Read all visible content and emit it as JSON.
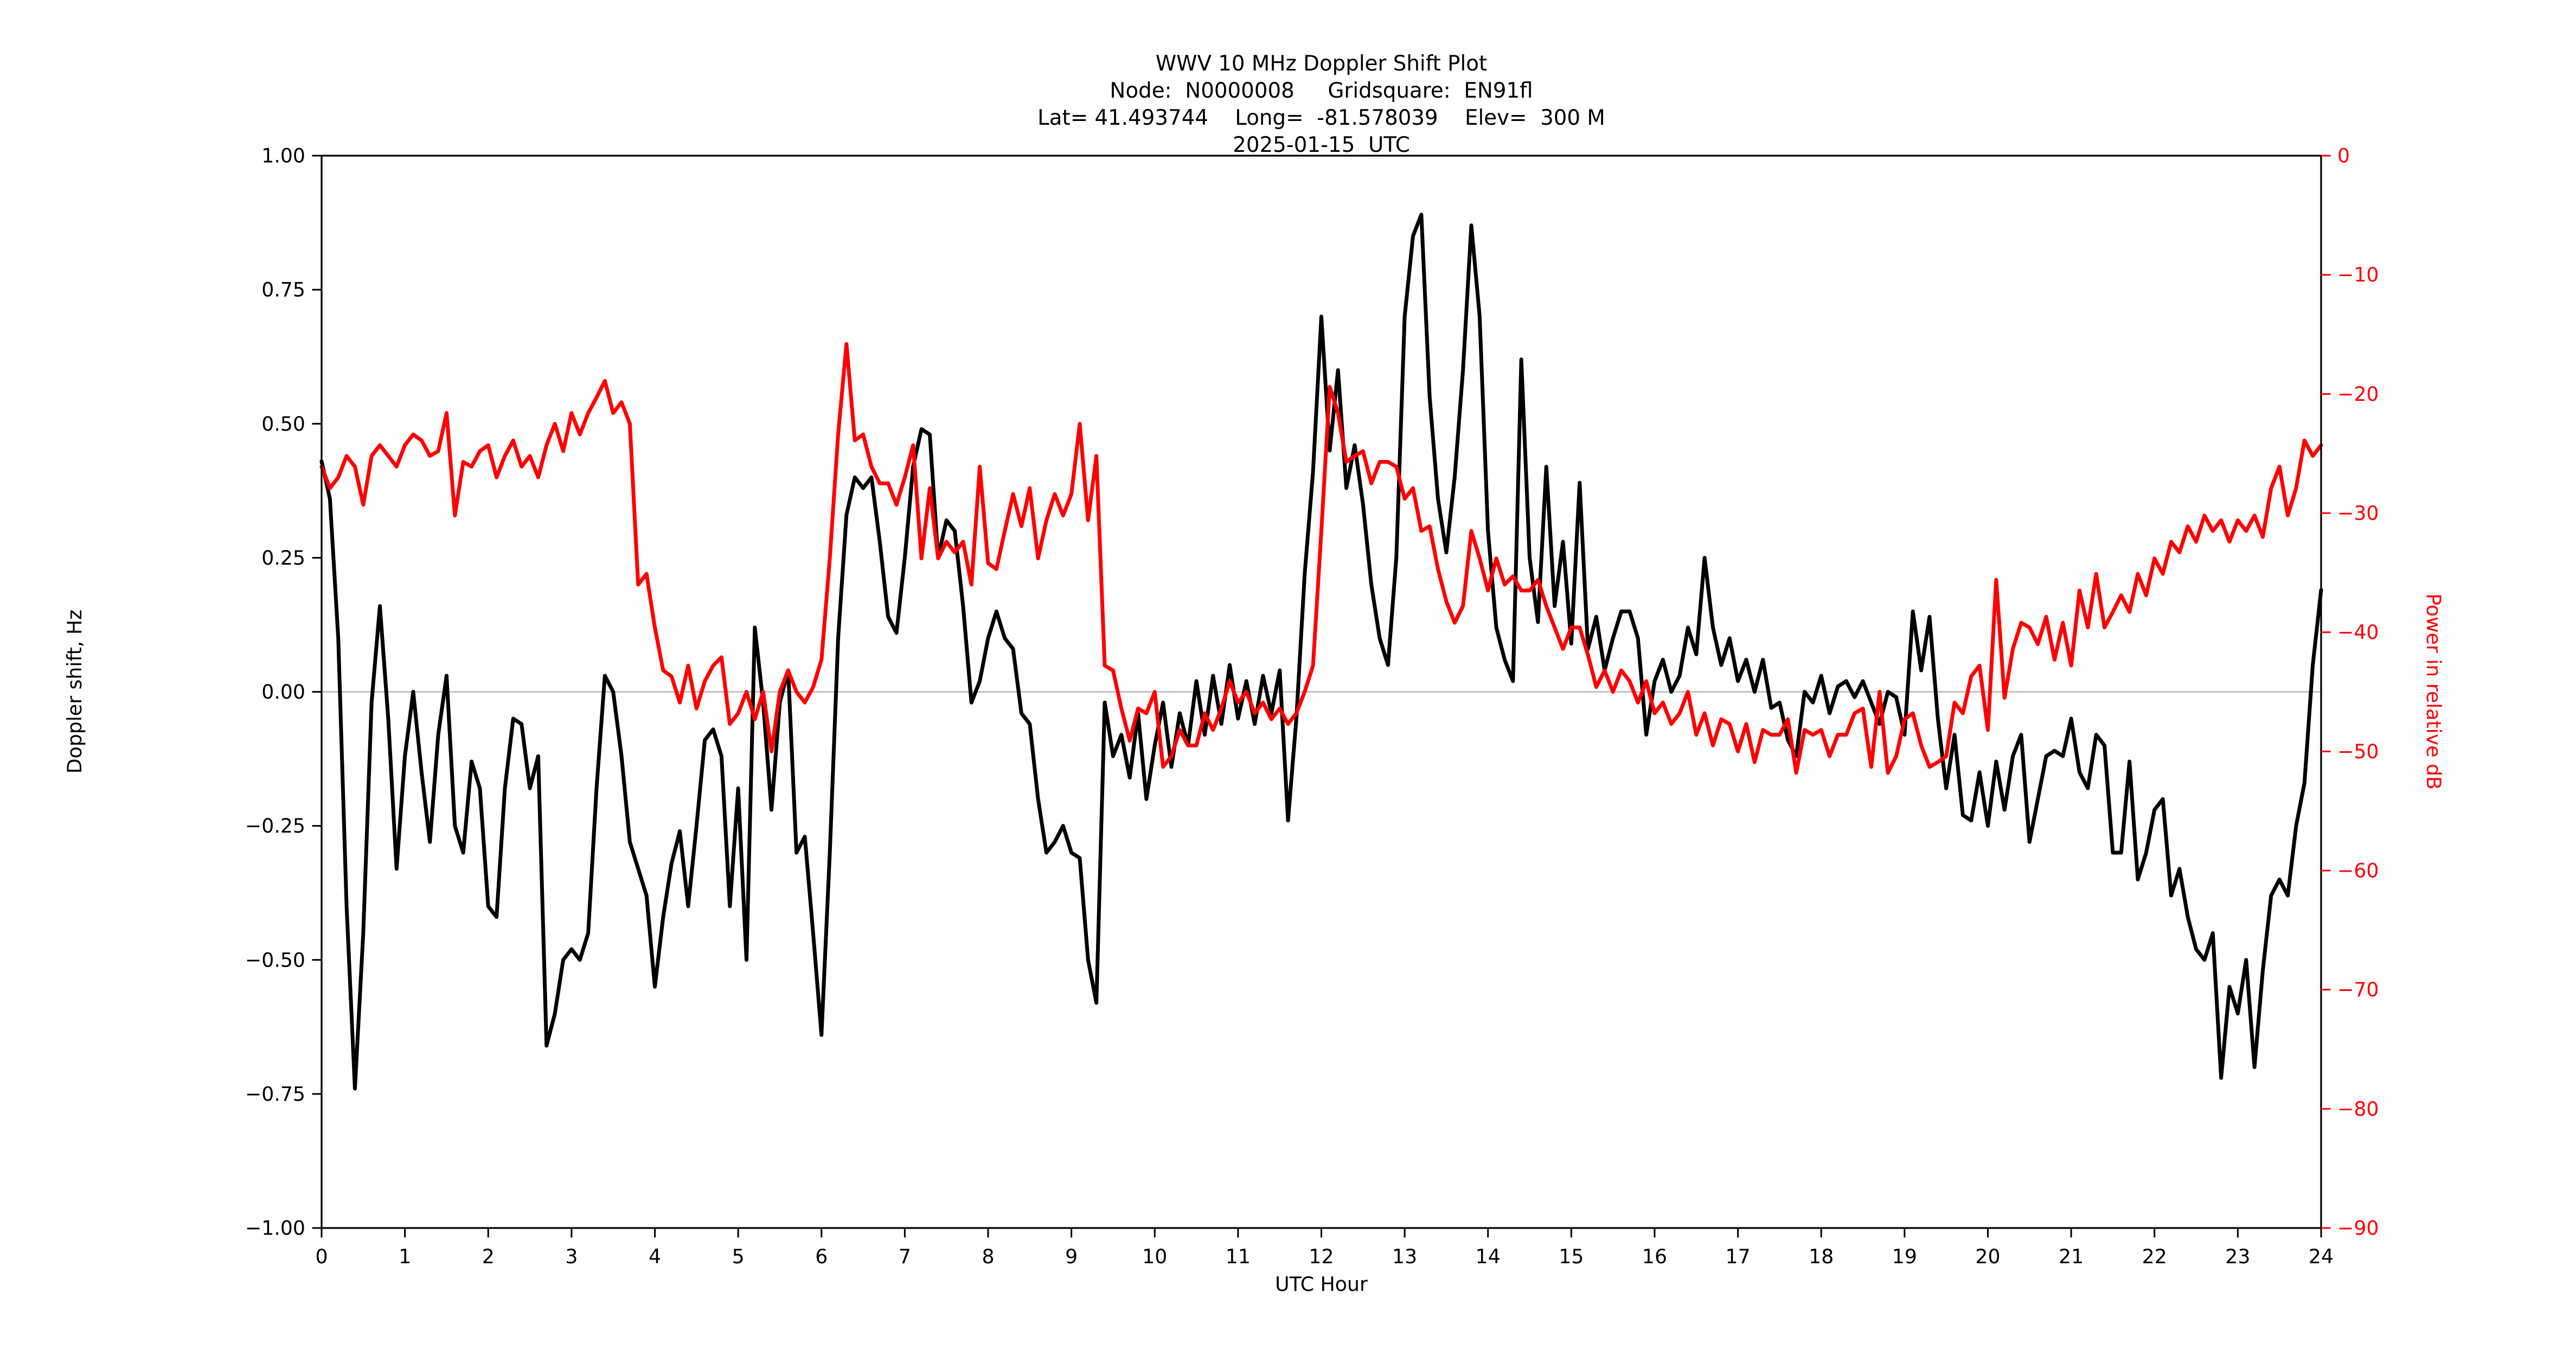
{
  "title": {
    "line1": "WWV 10 MHz Doppler Shift Plot",
    "line2": "Node:  N0000008     Gridsquare:  EN91fl",
    "line3": "Lat= 41.493744    Long=  -81.578039    Elev=  300 M",
    "line4": "2025-01-15  UTC"
  },
  "axes": {
    "x_label": "UTC Hour",
    "y_left_label": "Doppler shift, Hz",
    "y_right_label": "Power in relative dB",
    "x_ticks": [
      {
        "value": 0,
        "label": "0"
      },
      {
        "value": 1,
        "label": "1"
      },
      {
        "value": 2,
        "label": "2"
      },
      {
        "value": 3,
        "label": "3"
      },
      {
        "value": 4,
        "label": "4"
      },
      {
        "value": 5,
        "label": "5"
      },
      {
        "value": 6,
        "label": "6"
      },
      {
        "value": 7,
        "label": "7"
      },
      {
        "value": 8,
        "label": "8"
      },
      {
        "value": 9,
        "label": "9"
      },
      {
        "value": 10,
        "label": "10"
      },
      {
        "value": 11,
        "label": "11"
      },
      {
        "value": 12,
        "label": "12"
      },
      {
        "value": 13,
        "label": "13"
      },
      {
        "value": 14,
        "label": "14"
      },
      {
        "value": 15,
        "label": "15"
      },
      {
        "value": 16,
        "label": "16"
      },
      {
        "value": 17,
        "label": "17"
      },
      {
        "value": 18,
        "label": "18"
      },
      {
        "value": 19,
        "label": "19"
      },
      {
        "value": 20,
        "label": "20"
      },
      {
        "value": 21,
        "label": "21"
      },
      {
        "value": 22,
        "label": "22"
      },
      {
        "value": 23,
        "label": "23"
      },
      {
        "value": 24,
        "label": "24"
      }
    ],
    "y_left_ticks": [
      {
        "value": 1.0,
        "label": "1.00"
      },
      {
        "value": 0.75,
        "label": "0.75"
      },
      {
        "value": 0.5,
        "label": "0.50"
      },
      {
        "value": 0.25,
        "label": "0.25"
      },
      {
        "value": 0.0,
        "label": "0.00"
      },
      {
        "value": -0.25,
        "label": "−0.25"
      },
      {
        "value": -0.5,
        "label": "−0.50"
      },
      {
        "value": -0.75,
        "label": "−0.75"
      },
      {
        "value": -1.0,
        "label": "−1.00"
      }
    ],
    "y_right_ticks": [
      {
        "value": 0,
        "label": "0"
      },
      {
        "value": -10,
        "label": "−10"
      },
      {
        "value": -20,
        "label": "−20"
      },
      {
        "value": -30,
        "label": "−30"
      },
      {
        "value": -40,
        "label": "−40"
      },
      {
        "value": -50,
        "label": "−50"
      },
      {
        "value": -60,
        "label": "−60"
      },
      {
        "value": -70,
        "label": "−70"
      },
      {
        "value": -80,
        "label": "−80"
      },
      {
        "value": -90,
        "label": "−90"
      }
    ]
  },
  "colors": {
    "doppler_line": "#000000",
    "power_line": "#ff0000",
    "zero_gridline": "#b0b0b0",
    "spine": "#000000",
    "background": "#ffffff"
  },
  "chart_data": {
    "type": "line",
    "title": "WWV 10 MHz Doppler Shift Plot",
    "subtitle_lines": [
      "Node:  N0000008     Gridsquare:  EN91fl",
      "Lat= 41.493744    Long=  -81.578039    Elev=  300 M",
      "2025-01-15  UTC"
    ],
    "xlabel": "UTC Hour",
    "ylabel_left": "Doppler shift, Hz",
    "ylabel_right": "Power in relative dB",
    "xlim": [
      0,
      24
    ],
    "ylim_left": [
      -1.0,
      1.0
    ],
    "ylim_right": [
      -90,
      0
    ],
    "grid": "single horizontal gray line at left-axis 0.00",
    "legend": "none",
    "x_start": 0.0,
    "x_step": 0.1,
    "series": [
      {
        "name": "Doppler shift",
        "axis": "left",
        "unit": "Hz",
        "color": "#000000",
        "values": [
          0.43,
          0.36,
          0.1,
          -0.4,
          -0.74,
          -0.45,
          -0.02,
          0.16,
          -0.05,
          -0.33,
          -0.12,
          0.0,
          -0.15,
          -0.28,
          -0.08,
          0.03,
          -0.25,
          -0.3,
          -0.13,
          -0.18,
          -0.4,
          -0.42,
          -0.18,
          -0.05,
          -0.06,
          -0.18,
          -0.12,
          -0.66,
          -0.6,
          -0.5,
          -0.48,
          -0.5,
          -0.45,
          -0.18,
          0.03,
          0.0,
          -0.12,
          -0.28,
          -0.33,
          -0.38,
          -0.55,
          -0.42,
          -0.32,
          -0.26,
          -0.4,
          -0.25,
          -0.09,
          -0.07,
          -0.12,
          -0.4,
          -0.18,
          -0.5,
          0.12,
          -0.02,
          -0.22,
          -0.02,
          0.04,
          -0.3,
          -0.27,
          -0.45,
          -0.64,
          -0.3,
          0.1,
          0.33,
          0.4,
          0.38,
          0.4,
          0.28,
          0.14,
          0.11,
          0.25,
          0.42,
          0.49,
          0.48,
          0.25,
          0.32,
          0.3,
          0.16,
          -0.02,
          0.02,
          0.1,
          0.15,
          0.1,
          0.08,
          -0.04,
          -0.06,
          -0.2,
          -0.3,
          -0.28,
          -0.25,
          -0.3,
          -0.31,
          -0.5,
          -0.58,
          -0.02,
          -0.12,
          -0.08,
          -0.16,
          -0.04,
          -0.2,
          -0.1,
          -0.02,
          -0.14,
          -0.04,
          -0.1,
          0.02,
          -0.08,
          0.03,
          -0.06,
          0.05,
          -0.05,
          0.02,
          -0.06,
          0.03,
          -0.04,
          0.04,
          -0.24,
          -0.05,
          0.22,
          0.41,
          0.7,
          0.45,
          0.6,
          0.38,
          0.46,
          0.35,
          0.2,
          0.1,
          0.05,
          0.25,
          0.7,
          0.85,
          0.89,
          0.55,
          0.36,
          0.26,
          0.4,
          0.6,
          0.87,
          0.7,
          0.3,
          0.12,
          0.06,
          0.02,
          0.62,
          0.25,
          0.13,
          0.42,
          0.16,
          0.28,
          0.09,
          0.39,
          0.08,
          0.14,
          0.04,
          0.1,
          0.15,
          0.15,
          0.1,
          -0.08,
          0.02,
          0.06,
          0.0,
          0.03,
          0.12,
          0.07,
          0.25,
          0.12,
          0.05,
          0.1,
          0.02,
          0.06,
          0.0,
          0.06,
          -0.03,
          -0.02,
          -0.09,
          -0.12,
          0.0,
          -0.02,
          0.03,
          -0.04,
          0.01,
          0.02,
          -0.01,
          0.02,
          -0.02,
          -0.06,
          0.0,
          -0.01,
          -0.08,
          0.15,
          0.04,
          0.14,
          -0.05,
          -0.18,
          -0.08,
          -0.23,
          -0.24,
          -0.15,
          -0.25,
          -0.13,
          -0.22,
          -0.12,
          -0.08,
          -0.28,
          -0.2,
          -0.12,
          -0.11,
          -0.12,
          -0.05,
          -0.15,
          -0.18,
          -0.08,
          -0.1,
          -0.3,
          -0.3,
          -0.13,
          -0.35,
          -0.3,
          -0.22,
          -0.2,
          -0.38,
          -0.33,
          -0.42,
          -0.48,
          -0.5,
          -0.45,
          -0.72,
          -0.55,
          -0.6,
          -0.5,
          -0.7,
          -0.52,
          -0.38,
          -0.35,
          -0.38,
          -0.25,
          -0.17,
          0.05,
          0.19
        ]
      },
      {
        "name": "Power",
        "axis": "right",
        "unit": "dB",
        "color": "#ff0000",
        "values": [
          -26.1,
          -27.9,
          -27.0,
          -25.2,
          -26.1,
          -29.3,
          -25.2,
          -24.3,
          -25.2,
          -26.1,
          -24.3,
          -23.4,
          -23.9,
          -25.2,
          -24.8,
          -21.6,
          -30.2,
          -25.7,
          -26.1,
          -24.8,
          -24.3,
          -27.0,
          -25.2,
          -23.9,
          -26.1,
          -25.2,
          -27.0,
          -24.3,
          -22.5,
          -24.8,
          -21.6,
          -23.4,
          -21.6,
          -20.3,
          -18.9,
          -21.6,
          -20.7,
          -22.5,
          -36.0,
          -35.1,
          -39.6,
          -43.2,
          -43.7,
          -45.9,
          -42.8,
          -46.4,
          -44.1,
          -42.8,
          -42.1,
          -47.7,
          -46.8,
          -45.0,
          -47.3,
          -45.0,
          -50.0,
          -45.0,
          -43.2,
          -45.0,
          -45.9,
          -44.6,
          -42.3,
          -33.8,
          -23.4,
          -15.8,
          -23.9,
          -23.4,
          -26.1,
          -27.5,
          -27.5,
          -29.3,
          -27.0,
          -24.3,
          -33.8,
          -27.9,
          -33.8,
          -32.4,
          -33.3,
          -32.4,
          -36.0,
          -26.1,
          -34.2,
          -34.7,
          -31.5,
          -28.4,
          -31.1,
          -27.9,
          -33.8,
          -30.6,
          -28.4,
          -30.2,
          -28.4,
          -22.5,
          -30.6,
          -25.2,
          -42.8,
          -43.2,
          -46.4,
          -49.1,
          -46.4,
          -46.8,
          -45.0,
          -51.3,
          -50.4,
          -48.2,
          -49.5,
          -49.5,
          -46.8,
          -48.2,
          -46.4,
          -44.1,
          -45.9,
          -45.0,
          -46.8,
          -45.9,
          -47.3,
          -46.4,
          -47.7,
          -46.8,
          -45.0,
          -42.8,
          -31.5,
          -19.4,
          -21.6,
          -25.7,
          -25.2,
          -24.8,
          -27.5,
          -25.7,
          -25.7,
          -26.1,
          -28.8,
          -27.9,
          -31.5,
          -31.1,
          -34.7,
          -37.4,
          -39.2,
          -37.8,
          -31.5,
          -33.8,
          -36.5,
          -33.8,
          -36.0,
          -35.3,
          -36.5,
          -36.5,
          -35.6,
          -37.8,
          -39.6,
          -41.4,
          -39.6,
          -39.6,
          -41.9,
          -44.6,
          -43.2,
          -45.0,
          -43.2,
          -44.1,
          -45.9,
          -44.1,
          -46.8,
          -45.9,
          -47.7,
          -46.8,
          -45.0,
          -48.6,
          -46.8,
          -49.5,
          -47.3,
          -47.7,
          -50.0,
          -47.7,
          -50.9,
          -48.2,
          -48.6,
          -48.6,
          -47.3,
          -51.8,
          -48.2,
          -48.6,
          -48.2,
          -50.4,
          -48.6,
          -48.6,
          -46.8,
          -46.4,
          -51.3,
          -45.0,
          -51.8,
          -50.4,
          -47.3,
          -46.8,
          -49.5,
          -51.3,
          -50.9,
          -50.4,
          -45.9,
          -46.8,
          -43.7,
          -42.8,
          -48.2,
          -35.6,
          -45.5,
          -41.4,
          -39.2,
          -39.6,
          -41.0,
          -38.7,
          -42.3,
          -39.2,
          -42.8,
          -36.5,
          -39.6,
          -35.1,
          -39.6,
          -38.3,
          -36.9,
          -38.3,
          -35.1,
          -36.9,
          -33.8,
          -35.1,
          -32.4,
          -33.3,
          -31.1,
          -32.4,
          -30.2,
          -31.5,
          -30.6,
          -32.4,
          -30.6,
          -31.5,
          -30.2,
          -32.0,
          -27.9,
          -26.1,
          -30.2,
          -27.9,
          -23.9,
          -25.2,
          -24.3
        ]
      }
    ]
  }
}
